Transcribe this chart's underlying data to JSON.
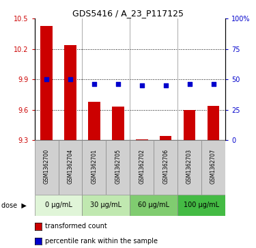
{
  "title": "GDS5416 / A_23_P117125",
  "samples": [
    "GSM1362700",
    "GSM1362704",
    "GSM1362701",
    "GSM1362705",
    "GSM1362702",
    "GSM1362706",
    "GSM1362703",
    "GSM1362707"
  ],
  "bar_values": [
    10.43,
    10.24,
    9.68,
    9.63,
    9.31,
    9.34,
    9.6,
    9.64
  ],
  "dot_values_pct": [
    50,
    50,
    46,
    46,
    45,
    45,
    46,
    46
  ],
  "ylim_left": [
    9.3,
    10.5
  ],
  "ylim_right": [
    0,
    100
  ],
  "yticks_left": [
    9.3,
    9.6,
    9.9,
    10.2,
    10.5
  ],
  "yticks_right": [
    0,
    25,
    50,
    75,
    100
  ],
  "ytick_right_labels": [
    "0",
    "25",
    "50",
    "75",
    "100%"
  ],
  "bar_color": "#cc0000",
  "dot_color": "#0000cc",
  "bar_width": 0.5,
  "dose_groups": [
    {
      "label": "0 μg/mL",
      "start": 0,
      "end": 2,
      "color": "#e0f5d8"
    },
    {
      "label": "30 μg/mL",
      "start": 2,
      "end": 4,
      "color": "#c0e8b0"
    },
    {
      "label": "60 μg/mL",
      "start": 4,
      "end": 6,
      "color": "#80cc70"
    },
    {
      "label": "100 μg/mL",
      "start": 6,
      "end": 8,
      "color": "#44bb44"
    }
  ],
  "sample_bg": "#d0d0d0",
  "legend_items": [
    {
      "color": "#cc0000",
      "label": "transformed count"
    },
    {
      "color": "#0000cc",
      "label": "percentile rank within the sample"
    }
  ],
  "title_fontsize": 9,
  "tick_fontsize": 7,
  "sample_fontsize": 5.5,
  "dose_fontsize": 7,
  "legend_fontsize": 7
}
